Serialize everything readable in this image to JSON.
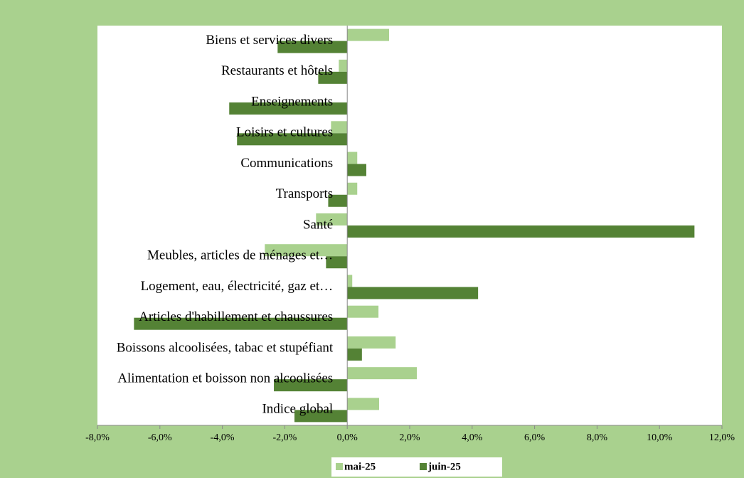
{
  "chart_data": {
    "type": "hbar",
    "categories": [
      "Biens et services divers",
      "Restaurants et hôtels",
      "Enseignements",
      "Loisirs et cultures",
      "Communications",
      "Transports",
      "Santé",
      "Meubles, articles de ménages et…",
      "Logement, eau, électricité, gaz et…",
      "Articles d'habillement et chaussures",
      "Boissons alcoolisées, tabac et stupéfiant",
      "Alimentation et boisson non alcoolisées",
      "Indice global"
    ],
    "series": [
      {
        "name": "mai-25",
        "color": "#a9d18e",
        "values": [
          1.34,
          -0.27,
          0.0,
          -0.52,
          0.32,
          0.32,
          -1.0,
          -2.64,
          0.16,
          1.0,
          1.55,
          2.23,
          1.02
        ]
      },
      {
        "name": "juin-25",
        "color": "#548235",
        "values": [
          -2.23,
          -0.93,
          -3.78,
          -3.53,
          0.61,
          -0.61,
          11.12,
          -0.68,
          4.19,
          -6.83,
          0.47,
          -2.35,
          -1.69
        ]
      }
    ],
    "xlim": [
      -8,
      12
    ],
    "xticks": [
      {
        "value": -8,
        "label": "-8,0%"
      },
      {
        "value": -6,
        "label": "-6,0%"
      },
      {
        "value": -4,
        "label": "-4,0%"
      },
      {
        "value": -2,
        "label": "-2,0%"
      },
      {
        "value": 0,
        "label": "0,0%"
      },
      {
        "value": 2,
        "label": "2,0%"
      },
      {
        "value": 4,
        "label": "4,0%"
      },
      {
        "value": 6,
        "label": "6,0%"
      },
      {
        "value": 8,
        "label": "8,0%"
      },
      {
        "value": 10,
        "label": "10,0%"
      },
      {
        "value": 12,
        "label": "12,0%"
      }
    ],
    "legend": "bottom"
  }
}
